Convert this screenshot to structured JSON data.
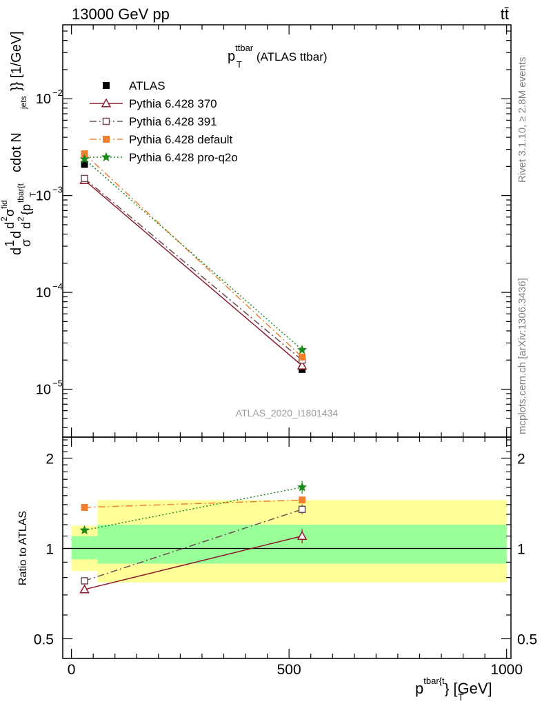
{
  "header": {
    "left": "13000 GeV pp",
    "right": "tt̄"
  },
  "side_labels": {
    "rivet": "Rivet 3.1.10, ≥ 2.8M events",
    "mcplots": "mcplots.cern.ch [arXiv:1306.3436]"
  },
  "chart_data": [
    {
      "type": "line",
      "panel": "main",
      "title": "p_T^{ttbar} (ATLAS ttbar)",
      "title_main": "p",
      "title_sub": "T",
      "title_sup": "ttbar",
      "title_rest": " (ATLAS ttbar)",
      "ylabel": "d1/σ d^2σ^{fid}/d^2{p_T^{tbar{t}}} cdot N_{jets}}} [1/GeV]",
      "ylabel_parts": {
        "a": "d",
        "b": "1",
        "c": "σ",
        "d": "d",
        "e": "d",
        "f": "2",
        "g": "σ",
        "h": "fid",
        "i": "d",
        "j": "2",
        "k": "{p",
        "l": "T",
        "m": "tbar{t",
        "n": "cdot N",
        "o": "jets",
        "p": "}} [1/GeV]"
      },
      "yscale": "log",
      "xlim": [
        -20,
        1010
      ],
      "ylim": [
        3.2e-06,
        0.058
      ],
      "y_ticks": [
        {
          "value": 0.01,
          "label_base": "10",
          "label_exp": "−2"
        },
        {
          "value": 0.001,
          "label_base": "10",
          "label_exp": "−3"
        },
        {
          "value": 0.0001,
          "label_base": "10",
          "label_exp": "−4"
        },
        {
          "value": 1e-05,
          "label_base": "10",
          "label_exp": "−5"
        }
      ],
      "watermark": "ATLAS_2020_I1801434",
      "x": [
        30,
        530
      ],
      "series": [
        {
          "name": "ATLAS",
          "color": "#000000",
          "marker": "filled-square",
          "line": "none",
          "values": [
            0.0021,
            1.6e-05
          ]
        },
        {
          "name": "Pythia 6.428 370",
          "color": "#8b1a2b",
          "marker": "open-triangle",
          "line": "solid",
          "values": [
            0.00144,
            1.75e-05
          ]
        },
        {
          "name": "Pythia 6.428 391",
          "color": "#6e4a52",
          "marker": "open-square",
          "line": "dashdot",
          "values": [
            0.0015,
            2e-05
          ]
        },
        {
          "name": "Pythia 6.428 default",
          "color": "#f08030",
          "marker": "filled-square",
          "line": "dashdot",
          "values": [
            0.0027,
            2.15e-05
          ]
        },
        {
          "name": "Pythia 6.428 pro-q2o",
          "color": "#1a8a1a",
          "marker": "star",
          "line": "dotted",
          "values": [
            0.00238,
            2.55e-05
          ]
        }
      ],
      "legend_position": "top-left"
    },
    {
      "type": "line",
      "panel": "ratio",
      "ylabel": "Ratio to ATLAS",
      "xlabel": "p_T^{tbar{t}} [GeV]",
      "xlabel_main": "p",
      "xlabel_sup": "tbar{t",
      "xlabel_mid": "}",
      "xlabel_sub": "T",
      "xlabel_rest": " [GeV]",
      "yscale": "log",
      "xlim": [
        -20,
        1010
      ],
      "ylim": [
        0.43,
        2.35
      ],
      "y_ticks": [
        {
          "value": 0.5,
          "label": "0.5"
        },
        {
          "value": 1,
          "label": "1"
        },
        {
          "value": 2,
          "label": "2"
        }
      ],
      "x_ticks": [
        {
          "value": 0,
          "label": "0"
        },
        {
          "value": 500,
          "label": "500"
        },
        {
          "value": 1000,
          "label": "1000"
        }
      ],
      "bands": [
        {
          "kind": "total-uncertainty",
          "color": "#ffff99",
          "bins": [
            {
              "x0": 0,
              "x1": 60,
              "lo": 0.84,
              "hi": 1.19
            },
            {
              "x0": 60,
              "x1": 1000,
              "lo": 0.77,
              "hi": 1.45
            }
          ]
        },
        {
          "kind": "stat-uncertainty",
          "color": "#99ff99",
          "bins": [
            {
              "x0": 0,
              "x1": 60,
              "lo": 0.92,
              "hi": 1.1
            },
            {
              "x0": 60,
              "x1": 1000,
              "lo": 0.89,
              "hi": 1.2
            }
          ]
        }
      ],
      "x": [
        30,
        530
      ],
      "series": [
        {
          "name": "Pythia 6.428 370",
          "color": "#8b1a2b",
          "marker": "open-triangle",
          "line": "solid",
          "values": [
            0.73,
            1.1
          ],
          "errors": [
            0.015,
            0.06
          ]
        },
        {
          "name": "Pythia 6.428 391",
          "color": "#6e4a52",
          "marker": "open-square",
          "line": "dashdot",
          "values": [
            0.78,
            1.35
          ],
          "errors": [
            0.015,
            0.05
          ]
        },
        {
          "name": "Pythia 6.428 default",
          "color": "#f08030",
          "marker": "filled-square",
          "line": "dashdot",
          "values": [
            1.37,
            1.45
          ],
          "errors": [
            0.03,
            0.04
          ]
        },
        {
          "name": "Pythia 6.428 pro-q2o",
          "color": "#1a8a1a",
          "marker": "star",
          "line": "dotted",
          "values": [
            1.15,
            1.6
          ],
          "errors": [
            0.02,
            0.08
          ]
        }
      ]
    }
  ]
}
